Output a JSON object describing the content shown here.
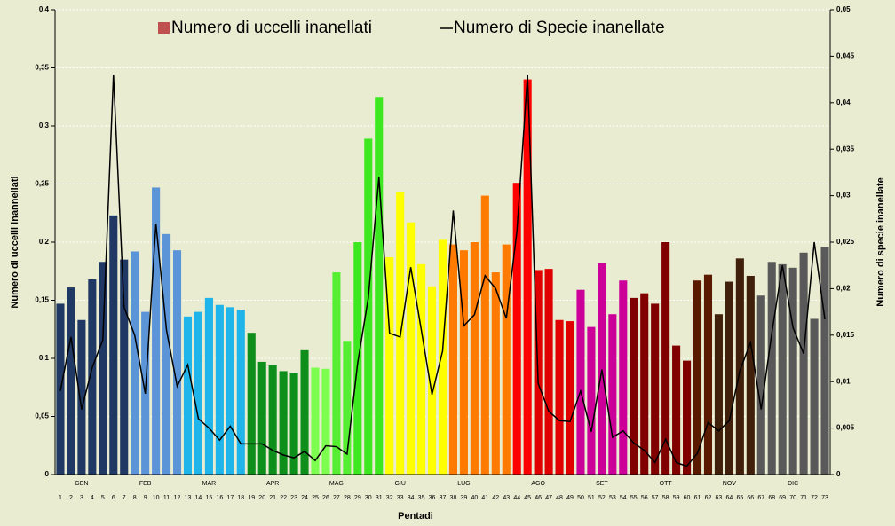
{
  "chart_data": {
    "type": "bar_line",
    "axis_labels": {
      "y": "Numero di uccelli inannellati",
      "y2": "Numero di specie  inanellate",
      "x": "Pentadi"
    },
    "categories": [
      1,
      2,
      3,
      4,
      5,
      6,
      7,
      8,
      9,
      10,
      11,
      12,
      13,
      14,
      15,
      16,
      17,
      18,
      19,
      20,
      21,
      22,
      23,
      24,
      25,
      26,
      27,
      28,
      29,
      30,
      31,
      32,
      33,
      34,
      35,
      36,
      37,
      38,
      39,
      40,
      41,
      42,
      43,
      44,
      45,
      46,
      47,
      48,
      49,
      50,
      51,
      52,
      53,
      54,
      55,
      56,
      57,
      58,
      59,
      60,
      61,
      62,
      63,
      64,
      65,
      66,
      67,
      68,
      69,
      70,
      71,
      72,
      73
    ],
    "month_categories": [
      null,
      null,
      "GEN",
      null,
      null,
      null,
      null,
      null,
      "FEB",
      null,
      null,
      null,
      null,
      null,
      "MAR",
      null,
      null,
      null,
      null,
      null,
      "APR",
      null,
      null,
      null,
      null,
      null,
      "MAG",
      null,
      null,
      null,
      null,
      null,
      "GIU",
      null,
      null,
      null,
      null,
      null,
      "LUG",
      null,
      null,
      null,
      null,
      null,
      null,
      "AGO",
      null,
      null,
      null,
      null,
      null,
      "SET",
      null,
      null,
      null,
      null,
      null,
      "OTT",
      null,
      null,
      null,
      null,
      null,
      "NOV",
      null,
      null,
      null,
      null,
      null,
      "DIC",
      null,
      null,
      null
    ],
    "series": [
      {
        "name": "Numero di uccelli inanellati",
        "color": "#c0504d",
        "type": "bar",
        "colors": [
          "#1f3864",
          "#1f3864",
          "#1f3864",
          "#1f3864",
          "#1f3864",
          "#1f3864",
          "#1f3864",
          "#5b95d8",
          "#5b95d8",
          "#5b95d8",
          "#5b95d8",
          "#5b95d8",
          "#1fb4ea",
          "#1fb4ea",
          "#1fb4ea",
          "#1fb4ea",
          "#1fb4ea",
          "#1fb4ea",
          "#0e8f1c",
          "#0e8f1c",
          "#0e8f1c",
          "#0e8f1c",
          "#0e8f1c",
          "#0e8f1c",
          "#7cff4f",
          "#7cff4f",
          "#55ee33",
          "#55ee33",
          "#3ee820",
          "#3ee820",
          "#3ee820",
          "#ffff00",
          "#ffff00",
          "#ffff00",
          "#ffff00",
          "#ffff00",
          "#ffff00",
          "#ff7a00",
          "#ff7a00",
          "#ff7a00",
          "#ff7a00",
          "#ff7a00",
          "#ff7a00",
          "#ff0000",
          "#ff0000",
          "#e00000",
          "#e00000",
          "#e00000",
          "#e00000",
          "#cc0099",
          "#cc0099",
          "#cc0099",
          "#cc0099",
          "#cc0099",
          "#800000",
          "#800000",
          "#800000",
          "#800000",
          "#800000",
          "#800000",
          "#5a1a00",
          "#5a1a00",
          "#40200a",
          "#40200a",
          "#40200a",
          "#40200a",
          "#595959",
          "#595959",
          "#595959",
          "#595959",
          "#595959",
          "#595959",
          "#595959"
        ],
        "values": [
          0.147,
          0.161,
          0.133,
          0.168,
          0.183,
          0.223,
          0.185,
          0.192,
          0.14,
          0.247,
          0.207,
          0.193,
          0.136,
          0.14,
          0.152,
          0.146,
          0.144,
          0.142,
          0.122,
          0.097,
          0.094,
          0.089,
          0.087,
          0.107,
          0.092,
          0.091,
          0.174,
          0.115,
          0.2,
          0.289,
          0.325,
          0.187,
          0.243,
          0.217,
          0.181,
          0.162,
          0.202,
          0.198,
          0.193,
          0.2,
          0.24,
          0.174,
          0.198,
          0.251,
          0.34,
          0.176,
          0.177,
          0.133,
          0.132,
          0.159,
          0.127,
          0.182,
          0.138,
          0.167,
          0.152,
          0.156,
          0.147,
          0.2,
          0.111,
          0.098,
          0.167,
          0.172,
          0.138,
          0.166,
          0.186,
          0.171,
          0.154,
          0.183,
          0.181,
          0.178,
          0.191,
          0.134,
          0.196
        ]
      },
      {
        "name": "Numero di Specie inanellate",
        "color": "#000000",
        "type": "line",
        "axis": "y2",
        "values": [
          0.009,
          0.0148,
          0.007,
          0.0115,
          0.0145,
          0.043,
          0.018,
          0.015,
          0.0087,
          0.027,
          0.0155,
          0.0095,
          0.0118,
          0.006,
          0.005,
          0.0037,
          0.0052,
          0.0033,
          0.0033,
          0.0033,
          0.0026,
          0.0021,
          0.0018,
          0.0025,
          0.0015,
          0.0031,
          0.003,
          0.0022,
          0.012,
          0.019,
          0.032,
          0.0152,
          0.0148,
          0.0223,
          0.0155,
          0.0086,
          0.0133,
          0.0284,
          0.016,
          0.0172,
          0.0214,
          0.02,
          0.0168,
          0.0262,
          0.043,
          0.0098,
          0.0068,
          0.0058,
          0.0057,
          0.009,
          0.0046,
          0.0113,
          0.004,
          0.0047,
          0.0034,
          0.0026,
          0.0013,
          0.0038,
          0.0013,
          0.0009,
          0.0023,
          0.0056,
          0.0047,
          0.0058,
          0.0112,
          0.0142,
          0.007,
          0.0152,
          0.0225,
          0.0158,
          0.013,
          0.025,
          0.0167
        ]
      }
    ],
    "ylim": [
      0,
      0.4
    ],
    "yticks": [
      0,
      {
        "value": 0.05,
        "label": "0,05"
      },
      {
        "value": 0.1,
        "label": "0,1"
      },
      {
        "value": 0.15,
        "label": "0,15"
      },
      {
        "value": 0.2,
        "label": "0,2"
      },
      {
        "value": 0.25,
        "label": "0,25"
      },
      {
        "value": 0.3,
        "label": "0,3"
      },
      {
        "value": 0.35,
        "label": "0,35"
      },
      {
        "value": 0.4,
        "label": "0,4"
      }
    ],
    "y2lim": [
      0,
      0.05
    ],
    "y2ticks": [
      0,
      {
        "value": 0.005,
        "label": "0,005"
      },
      {
        "value": 0.01,
        "label": "0,01"
      },
      {
        "value": 0.015,
        "label": "0,015"
      },
      {
        "value": 0.02,
        "label": "0,02"
      },
      {
        "value": 0.025,
        "label": "0,025"
      },
      {
        "value": 0.03,
        "label": "0,03"
      },
      {
        "value": 0.035,
        "label": "0,035"
      },
      {
        "value": 0.04,
        "label": "0,04"
      },
      {
        "value": 0.045,
        "label": "0,045"
      },
      {
        "value": 0.05,
        "label": "0,05"
      }
    ],
    "grid": true,
    "legend": "top"
  }
}
